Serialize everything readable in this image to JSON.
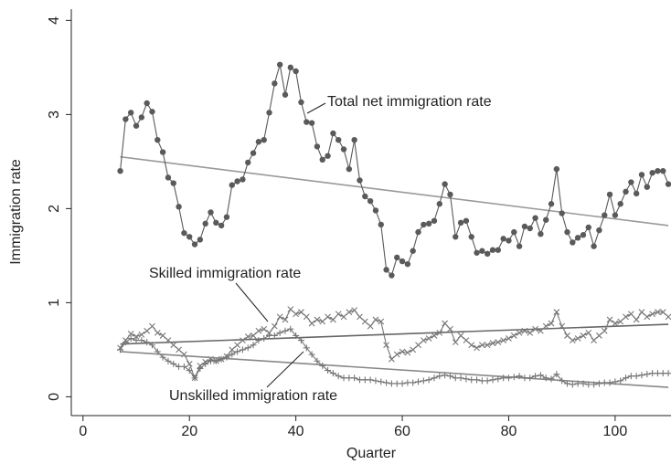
{
  "chart_data": {
    "type": "line",
    "x_label": "Quarter",
    "y_label": "Immigration rate",
    "xlim": [
      -2.2,
      110.5
    ],
    "ylim": [
      -0.2,
      4.12
    ],
    "xticks": [
      0,
      20,
      40,
      60,
      80,
      100
    ],
    "yticks": [
      0,
      1,
      2,
      3,
      4
    ],
    "x": [
      7,
      8,
      9,
      10,
      11,
      12,
      13,
      14,
      15,
      16,
      17,
      18,
      19,
      20,
      21,
      22,
      23,
      24,
      25,
      26,
      27,
      28,
      29,
      30,
      31,
      32,
      33,
      34,
      35,
      36,
      37,
      38,
      39,
      40,
      41,
      42,
      43,
      44,
      45,
      46,
      47,
      48,
      49,
      50,
      51,
      52,
      53,
      54,
      55,
      56,
      57,
      58,
      59,
      60,
      61,
      62,
      63,
      64,
      65,
      66,
      67,
      68,
      69,
      70,
      71,
      72,
      73,
      74,
      75,
      76,
      77,
      78,
      79,
      80,
      81,
      82,
      83,
      84,
      85,
      86,
      87,
      88,
      89,
      90,
      91,
      92,
      93,
      94,
      95,
      96,
      97,
      98,
      99,
      100,
      101,
      102,
      103,
      104,
      105,
      106,
      107,
      108,
      109,
      110
    ],
    "series": [
      {
        "marker": "circle",
        "color": "#5a5a5a",
        "trend_color": "#999999",
        "trend_values": [
          2.55,
          1.82
        ],
        "values": [
          2.4,
          2.95,
          3.02,
          2.88,
          2.97,
          3.12,
          3.03,
          2.73,
          2.6,
          2.33,
          2.27,
          2.02,
          1.74,
          1.7,
          1.62,
          1.67,
          1.84,
          1.96,
          1.85,
          1.82,
          1.91,
          2.25,
          2.29,
          2.31,
          2.49,
          2.59,
          2.71,
          2.73,
          3.02,
          3.33,
          3.53,
          3.21,
          3.5,
          3.46,
          3.13,
          2.92,
          2.91,
          2.66,
          2.52,
          2.56,
          2.8,
          2.73,
          2.63,
          2.42,
          2.73,
          2.3,
          2.13,
          2.08,
          1.98,
          1.83,
          1.35,
          1.29,
          1.48,
          1.44,
          1.41,
          1.55,
          1.75,
          1.83,
          1.84,
          1.87,
          2.05,
          2.26,
          2.15,
          1.7,
          1.85,
          1.87,
          1.7,
          1.53,
          1.55,
          1.52,
          1.56,
          1.56,
          1.68,
          1.66,
          1.75,
          1.6,
          1.81,
          1.79,
          1.9,
          1.73,
          1.88,
          2.05,
          2.42,
          1.95,
          1.75,
          1.64,
          1.69,
          1.72,
          1.8,
          1.6,
          1.77,
          1.93,
          2.15,
          1.93,
          2.05,
          2.18,
          2.28,
          2.16,
          2.36,
          2.23,
          2.38,
          2.4,
          2.4,
          2.26
        ]
      },
      {
        "marker": "x",
        "color": "#777777",
        "trend_color": "#666666",
        "trend_values": [
          0.56,
          0.77
        ],
        "values": [
          0.52,
          0.6,
          0.67,
          0.64,
          0.66,
          0.7,
          0.75,
          0.68,
          0.65,
          0.6,
          0.55,
          0.5,
          0.45,
          0.35,
          0.2,
          0.33,
          0.37,
          0.4,
          0.38,
          0.4,
          0.43,
          0.5,
          0.55,
          0.6,
          0.64,
          0.65,
          0.7,
          0.72,
          0.68,
          0.75,
          0.85,
          0.82,
          0.93,
          0.88,
          0.9,
          0.85,
          0.78,
          0.82,
          0.8,
          0.85,
          0.82,
          0.88,
          0.85,
          0.9,
          0.92,
          0.85,
          0.8,
          0.75,
          0.82,
          0.8,
          0.55,
          0.4,
          0.45,
          0.48,
          0.47,
          0.5,
          0.55,
          0.6,
          0.62,
          0.65,
          0.68,
          0.78,
          0.72,
          0.58,
          0.65,
          0.6,
          0.55,
          0.52,
          0.55,
          0.55,
          0.57,
          0.58,
          0.6,
          0.62,
          0.65,
          0.68,
          0.7,
          0.68,
          0.72,
          0.7,
          0.75,
          0.78,
          0.9,
          0.75,
          0.65,
          0.6,
          0.62,
          0.65,
          0.68,
          0.6,
          0.65,
          0.7,
          0.82,
          0.78,
          0.8,
          0.85,
          0.88,
          0.82,
          0.9,
          0.85,
          0.88,
          0.9,
          0.9,
          0.85
        ]
      },
      {
        "marker": "plus",
        "color": "#777777",
        "trend_color": "#888888",
        "trend_values": [
          0.48,
          0.1
        ],
        "values": [
          0.5,
          0.58,
          0.62,
          0.6,
          0.6,
          0.58,
          0.55,
          0.48,
          0.42,
          0.38,
          0.35,
          0.32,
          0.32,
          0.28,
          0.2,
          0.3,
          0.35,
          0.38,
          0.38,
          0.4,
          0.42,
          0.45,
          0.48,
          0.5,
          0.52,
          0.55,
          0.6,
          0.62,
          0.65,
          0.65,
          0.68,
          0.7,
          0.72,
          0.65,
          0.6,
          0.52,
          0.45,
          0.38,
          0.33,
          0.28,
          0.25,
          0.22,
          0.2,
          0.2,
          0.2,
          0.18,
          0.18,
          0.18,
          0.17,
          0.16,
          0.15,
          0.14,
          0.14,
          0.14,
          0.15,
          0.15,
          0.16,
          0.17,
          0.18,
          0.2,
          0.22,
          0.23,
          0.22,
          0.2,
          0.2,
          0.19,
          0.18,
          0.18,
          0.17,
          0.17,
          0.18,
          0.19,
          0.2,
          0.2,
          0.21,
          0.22,
          0.2,
          0.2,
          0.22,
          0.23,
          0.2,
          0.19,
          0.24,
          0.17,
          0.14,
          0.13,
          0.14,
          0.14,
          0.13,
          0.13,
          0.14,
          0.15,
          0.15,
          0.16,
          0.17,
          0.2,
          0.22,
          0.22,
          0.23,
          0.24,
          0.25,
          0.25,
          0.25,
          0.25
        ]
      }
    ],
    "annotations": [
      "Total net immigration rate",
      "Skilled immigration rate",
      "Unskilled immigration rate"
    ]
  }
}
